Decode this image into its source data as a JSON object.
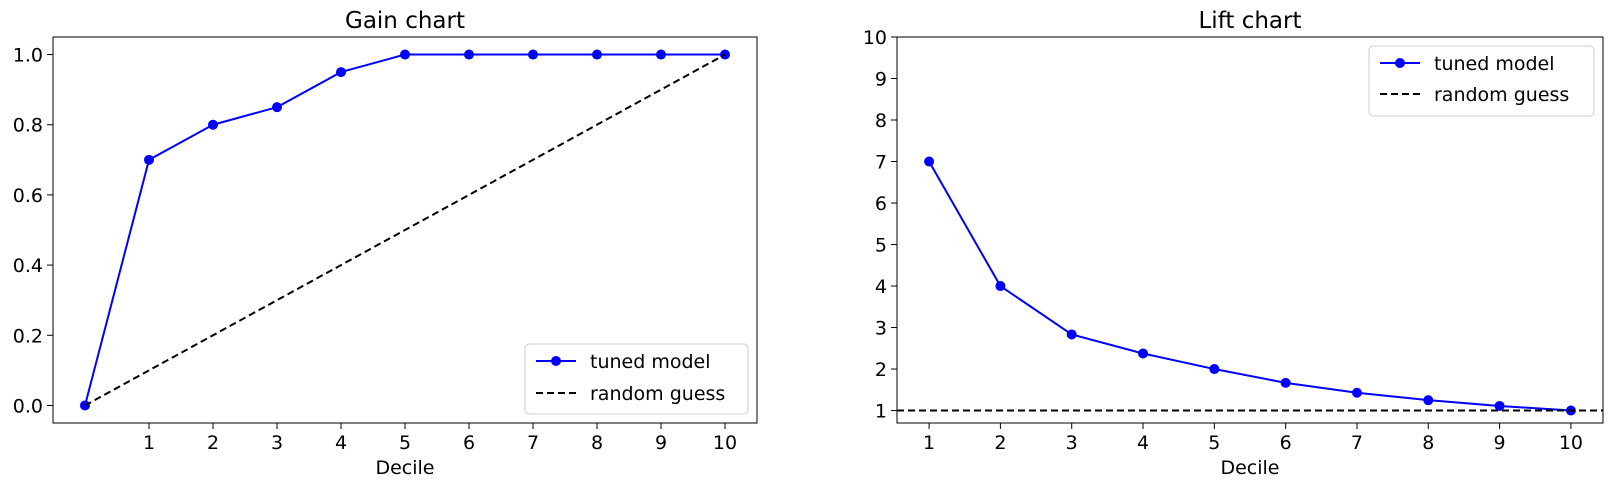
{
  "chart_data": [
    {
      "type": "line",
      "title": "Gain chart",
      "xlabel": "Decile",
      "ylabel": "",
      "xlim": [
        -0.5,
        10.5
      ],
      "ylim": [
        -0.05,
        1.05
      ],
      "xticks": [
        "1",
        "2",
        "3",
        "4",
        "5",
        "6",
        "7",
        "8",
        "9",
        "10"
      ],
      "yticks": [
        "0.0",
        "0.2",
        "0.4",
        "0.6",
        "0.8",
        "1.0"
      ],
      "grid": false,
      "legend_position": "bottom-right",
      "series": [
        {
          "name": "tuned model",
          "style": "solid-marker",
          "color": "#0000ff",
          "x": [
            0,
            1,
            2,
            3,
            4,
            5,
            6,
            7,
            8,
            9,
            10
          ],
          "y": [
            0,
            0.7,
            0.8,
            0.85,
            0.95,
            1.0,
            1.0,
            1.0,
            1.0,
            1.0,
            1.0
          ]
        },
        {
          "name": "random guess",
          "style": "dashed",
          "color": "#000000",
          "x": [
            0,
            10
          ],
          "y": [
            0,
            1.0
          ]
        }
      ]
    },
    {
      "type": "line",
      "title": "Lift chart",
      "xlabel": "Decile",
      "ylabel": "",
      "xlim": [
        0.55,
        10.45
      ],
      "ylim": [
        0.7,
        10
      ],
      "xticks": [
        "1",
        "2",
        "3",
        "4",
        "5",
        "6",
        "7",
        "8",
        "9",
        "10"
      ],
      "yticks": [
        "1",
        "2",
        "3",
        "4",
        "5",
        "6",
        "7",
        "8",
        "9",
        "10"
      ],
      "grid": false,
      "legend_position": "top-right",
      "series": [
        {
          "name": "tuned model",
          "style": "solid-marker",
          "color": "#0000ff",
          "x": [
            1,
            2,
            3,
            4,
            5,
            6,
            7,
            8,
            9,
            10
          ],
          "y": [
            7.0,
            4.0,
            2.833,
            2.375,
            2.0,
            1.667,
            1.429,
            1.25,
            1.111,
            1.0
          ]
        },
        {
          "name": "random guess",
          "style": "dashed-hline",
          "color": "#000000",
          "y": 1.0
        }
      ]
    }
  ]
}
